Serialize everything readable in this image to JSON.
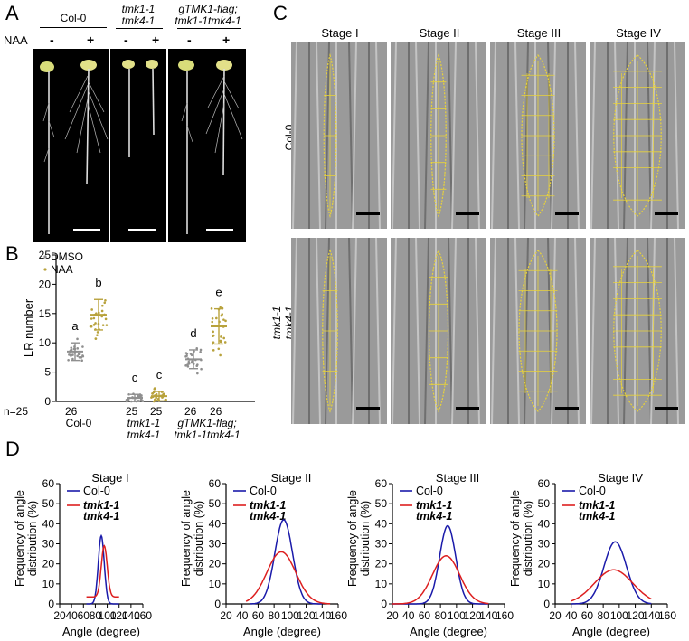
{
  "panelA": {
    "label": "A",
    "naa_label": "NAA",
    "groups": [
      {
        "name": "Col-0",
        "italic": false,
        "signs": [
          "-",
          "+"
        ]
      },
      {
        "name1": "tmk1-1",
        "name2": "tmk4-1",
        "italic": true,
        "signs": [
          "-",
          "+"
        ]
      },
      {
        "name1": "gTMK1-flag;",
        "name2": "tmk1-1tmk4-1",
        "italic": true,
        "signs": [
          "-",
          "+"
        ]
      }
    ]
  },
  "panelB": {
    "label": "B",
    "legend": [
      "DMSO",
      "NAA"
    ],
    "n_prefix": "n=25",
    "n_values": [
      "26",
      "25",
      "25",
      "26",
      "26"
    ],
    "xgroups": [
      {
        "line1": "Col-0",
        "line2": ""
      },
      {
        "line1": "tmk1-1",
        "line2": "tmk4-1"
      },
      {
        "line1": "gTMK1-flag;",
        "line2": "tmk1-1tmk4-1"
      }
    ]
  },
  "panelC": {
    "label": "C",
    "stages": [
      "Stage I",
      "Stage II",
      "Stage III",
      "Stage IV"
    ],
    "rows": [
      {
        "line1": "Col-0",
        "line2": ""
      },
      {
        "line1": "tmk1-1",
        "line2": "tmk4-1"
      }
    ]
  },
  "panelD": {
    "label": "D",
    "ylabel_line1": "Frequency of angle",
    "ylabel_line2": "distribution (%)",
    "xlabel": "Angle (degree)",
    "legend_col": "Col-0",
    "legend_mut1": "tmk1-1",
    "legend_mut2": "tmk4-1"
  },
  "colors": {
    "col0": "#1a1aaa",
    "mutant": "#dd1f1f",
    "dmso": "#8f8f8f",
    "naa": "#b8a23c",
    "trace": "#e8d23a"
  },
  "chart_data": [
    {
      "type": "scatter",
      "title": "",
      "ylabel": "LR number",
      "ylim": [
        0,
        25
      ],
      "yticks": [
        0,
        5,
        10,
        15,
        20,
        25
      ],
      "series": [
        {
          "name": "DMSO",
          "values": [
            {
              "group": "Col-0",
              "mean": 8.5,
              "sd": 1.5,
              "letter": "a"
            },
            {
              "group": "tmk1-1 tmk4-1",
              "mean": 0.6,
              "sd": 0.6,
              "letter": "c"
            },
            {
              "group": "gTMK1-flag; tmk1-1tmk4-1",
              "mean": 7.2,
              "sd": 1.6,
              "letter": "d"
            }
          ]
        },
        {
          "name": "NAA",
          "values": [
            {
              "group": "Col-0",
              "mean": 14.8,
              "sd": 2.6,
              "letter": "b"
            },
            {
              "group": "tmk1-1 tmk4-1",
              "mean": 0.9,
              "sd": 0.8,
              "letter": "c"
            },
            {
              "group": "gTMK1-flag; tmk1-1tmk4-1",
              "mean": 12.8,
              "sd": 3.0,
              "letter": "e"
            }
          ]
        }
      ]
    },
    {
      "type": "line",
      "title": "Stage I",
      "xlabel": "Angle (degree)",
      "ylabel": "Frequency of angle distribution (%)",
      "xlim": [
        20,
        160
      ],
      "ylim": [
        0,
        60
      ],
      "xticks": [
        20,
        40,
        60,
        80,
        100,
        120,
        140,
        160
      ],
      "yticks": [
        0,
        10,
        20,
        30,
        40,
        50,
        60
      ],
      "series": [
        {
          "name": "Col-0",
          "peak_x": 90,
          "peak_y": 34,
          "sigma": 5,
          "range": [
            65,
            120
          ],
          "base": 0
        },
        {
          "name": "tmk1-1 tmk4-1",
          "peak_x": 95,
          "peak_y": 29,
          "sigma": 5,
          "range": [
            65,
            120
          ],
          "base": 3.5
        }
      ]
    },
    {
      "type": "line",
      "title": "Stage II",
      "xlabel": "Angle (degree)",
      "ylabel": "Frequency of angle distribution (%)",
      "xlim": [
        20,
        160
      ],
      "ylim": [
        0,
        60
      ],
      "xticks": [
        20,
        40,
        60,
        80,
        100,
        120,
        140,
        160
      ],
      "yticks": [
        0,
        10,
        20,
        30,
        40,
        50,
        60
      ],
      "series": [
        {
          "name": "Col-0",
          "peak_x": 92,
          "peak_y": 42,
          "sigma": 11,
          "range": [
            50,
            140
          ],
          "base": 0
        },
        {
          "name": "tmk1-1 tmk4-1",
          "peak_x": 89,
          "peak_y": 26,
          "sigma": 18,
          "range": [
            45,
            150
          ],
          "base": 0
        }
      ]
    },
    {
      "type": "line",
      "title": "Stage III",
      "xlabel": "Angle (degree)",
      "ylabel": "Frequency of angle distribution (%)",
      "xlim": [
        20,
        160
      ],
      "ylim": [
        0,
        60
      ],
      "xticks": [
        20,
        40,
        60,
        80,
        100,
        120,
        140,
        160
      ],
      "yticks": [
        0,
        10,
        20,
        30,
        40,
        50,
        60
      ],
      "series": [
        {
          "name": "Col-0",
          "peak_x": 89,
          "peak_y": 39,
          "sigma": 10,
          "range": [
            20,
            140
          ],
          "base": 0
        },
        {
          "name": "tmk1-1 tmk4-1",
          "peak_x": 87,
          "peak_y": 24,
          "sigma": 17,
          "range": [
            20,
            140
          ],
          "base": 0
        }
      ]
    },
    {
      "type": "line",
      "title": "Stage IV",
      "xlabel": "Angle (degree)",
      "ylabel": "Frequency of angle distribution (%)",
      "xlim": [
        20,
        160
      ],
      "ylim": [
        0,
        60
      ],
      "xticks": [
        20,
        40,
        60,
        80,
        100,
        120,
        140,
        160
      ],
      "yticks": [
        0,
        10,
        20,
        30,
        40,
        50,
        60
      ],
      "series": [
        {
          "name": "Col-0",
          "peak_x": 95,
          "peak_y": 31,
          "sigma": 14,
          "range": [
            40,
            140
          ],
          "base": 0
        },
        {
          "name": "tmk1-1 tmk4-1",
          "peak_x": 93,
          "peak_y": 17,
          "sigma": 24,
          "range": [
            40,
            140
          ],
          "base": 0
        }
      ]
    }
  ]
}
